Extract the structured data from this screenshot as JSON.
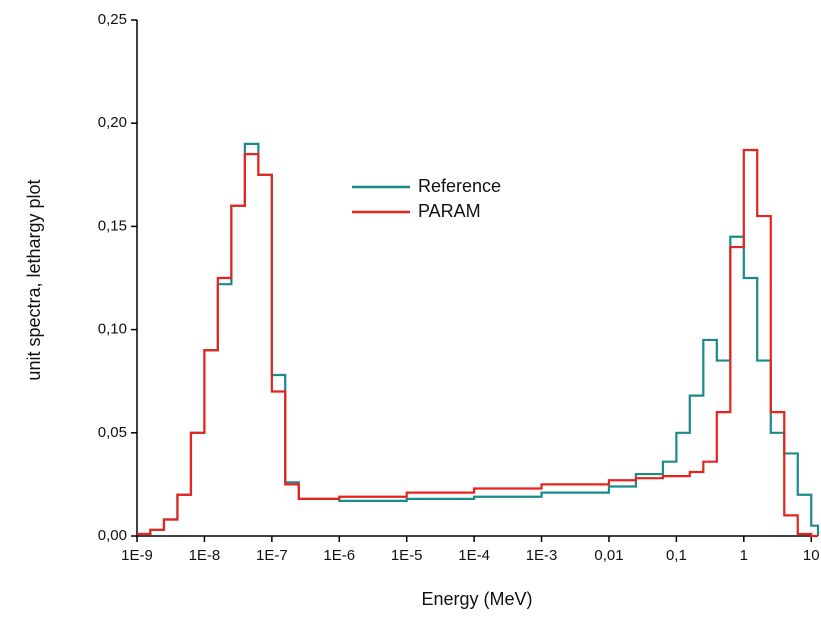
{
  "chart_data": {
    "type": "step",
    "x_label": "Energy (MeV)",
    "y_label": "unit spectra, lethargy plot",
    "x": [
      1e-09,
      1.58e-09,
      2.51e-09,
      3.98e-09,
      6.31e-09,
      1e-08,
      1.58e-08,
      2.51e-08,
      3.98e-08,
      6.31e-08,
      1e-07,
      1.58e-07,
      2.51e-07,
      1e-06,
      1e-05,
      0.0001,
      0.001,
      0.01,
      0.0251,
      0.0631,
      0.1,
      0.158,
      0.251,
      0.398,
      0.631,
      1,
      1.58,
      2.51,
      3.98,
      6.31,
      10,
      12.6
    ],
    "series": [
      {
        "name": "Reference",
        "color": "#1a8a8a",
        "values": [
          0.001,
          0.003,
          0.008,
          0.02,
          0.05,
          0.09,
          0.122,
          0.16,
          0.19,
          0.175,
          0.078,
          0.026,
          0.018,
          0.017,
          0.018,
          0.019,
          0.021,
          0.024,
          0.03,
          0.036,
          0.05,
          0.068,
          0.095,
          0.085,
          0.145,
          0.125,
          0.085,
          0.05,
          0.04,
          0.02,
          0.005,
          0
        ]
      },
      {
        "name": "PARAM",
        "color": "#e8231e",
        "values": [
          0.001,
          0.003,
          0.008,
          0.02,
          0.05,
          0.09,
          0.125,
          0.16,
          0.185,
          0.175,
          0.07,
          0.025,
          0.018,
          0.019,
          0.021,
          0.023,
          0.025,
          0.027,
          0.028,
          0.029,
          0.029,
          0.031,
          0.036,
          0.06,
          0.14,
          0.187,
          0.155,
          0.06,
          0.01,
          0.001,
          0,
          0
        ]
      }
    ],
    "log_x": true,
    "xlim": [
      1e-09,
      12.6
    ],
    "ylim": [
      0,
      0.25
    ],
    "xticks": [
      {
        "value": 1e-09,
        "label": "1E-9"
      },
      {
        "value": 1e-08,
        "label": "1E-8"
      },
      {
        "value": 1e-07,
        "label": "1E-7"
      },
      {
        "value": 1e-06,
        "label": "1E-6"
      },
      {
        "value": 1e-05,
        "label": "1E-5"
      },
      {
        "value": 0.0001,
        "label": "1E-4"
      },
      {
        "value": 0.001,
        "label": "1E-3"
      },
      {
        "value": 0.01,
        "label": "0,01"
      },
      {
        "value": 0.1,
        "label": "0,1"
      },
      1,
      10
    ],
    "yticks": [
      {
        "value": 0,
        "label": "0,00"
      },
      {
        "value": 0.05,
        "label": "0,05"
      },
      {
        "value": 0.1,
        "label": "0,10"
      },
      {
        "value": 0.15,
        "label": "0,15"
      },
      {
        "value": 0.2,
        "label": "0,20"
      },
      {
        "value": 0.25,
        "label": "0,25"
      }
    ]
  }
}
